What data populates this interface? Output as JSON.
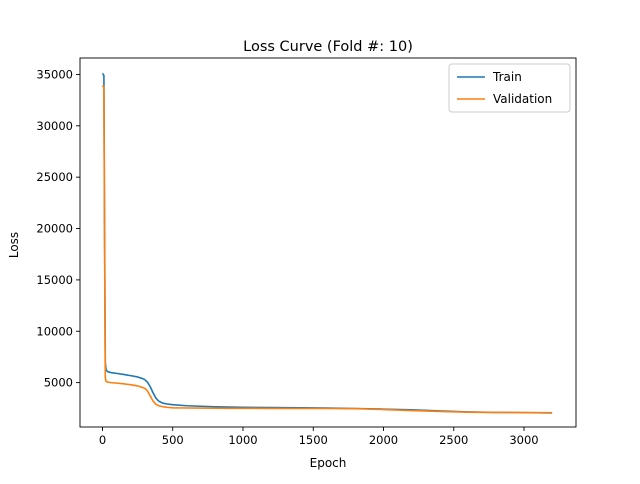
{
  "chart_data": {
    "type": "line",
    "title": "Loss Curve (Fold #: 10)",
    "xlabel": "Epoch",
    "ylabel": "Loss",
    "xlim": [
      -160,
      3370
    ],
    "ylim": [
      680,
      36600
    ],
    "xticks": [
      0,
      500,
      1000,
      1500,
      2000,
      2500,
      3000
    ],
    "yticks": [
      5000,
      10000,
      15000,
      20000,
      25000,
      30000,
      35000
    ],
    "grid": false,
    "legend_position": "upper right",
    "series": [
      {
        "name": "Train",
        "color": "#1f77b4",
        "x": [
          0,
          5,
          10,
          15,
          20,
          25,
          30,
          40,
          60,
          100,
          150,
          200,
          250,
          280,
          300,
          320,
          340,
          360,
          380,
          400,
          430,
          460,
          500,
          600,
          700,
          800,
          900,
          1000,
          1200,
          1400,
          1600,
          1800,
          2000,
          2200,
          2400,
          2600,
          2800,
          3000,
          3200
        ],
        "y": [
          35100,
          35000,
          34900,
          20000,
          7000,
          6300,
          6150,
          6050,
          5980,
          5900,
          5800,
          5680,
          5550,
          5420,
          5300,
          5050,
          4600,
          4000,
          3500,
          3200,
          3000,
          2920,
          2850,
          2750,
          2700,
          2650,
          2620,
          2600,
          2570,
          2550,
          2520,
          2480,
          2420,
          2350,
          2250,
          2150,
          2100,
          2080,
          2050
        ]
      },
      {
        "name": "Validation",
        "color": "#ff7f0e",
        "x": [
          0,
          5,
          10,
          15,
          20,
          25,
          30,
          40,
          60,
          100,
          150,
          200,
          250,
          280,
          300,
          320,
          340,
          360,
          380,
          400,
          430,
          460,
          500,
          600,
          700,
          800,
          900,
          1000,
          1200,
          1400,
          1600,
          1800,
          2000,
          2200,
          2400,
          2600,
          2800,
          3000,
          3200
        ],
        "y": [
          33800,
          33900,
          33700,
          18000,
          5500,
          5150,
          5080,
          5050,
          5000,
          4950,
          4880,
          4800,
          4680,
          4550,
          4450,
          4200,
          3700,
          3200,
          2900,
          2750,
          2650,
          2600,
          2550,
          2530,
          2520,
          2510,
          2500,
          2500,
          2490,
          2480,
          2480,
          2460,
          2380,
          2280,
          2200,
          2120,
          2100,
          2090,
          2080
        ]
      }
    ]
  }
}
